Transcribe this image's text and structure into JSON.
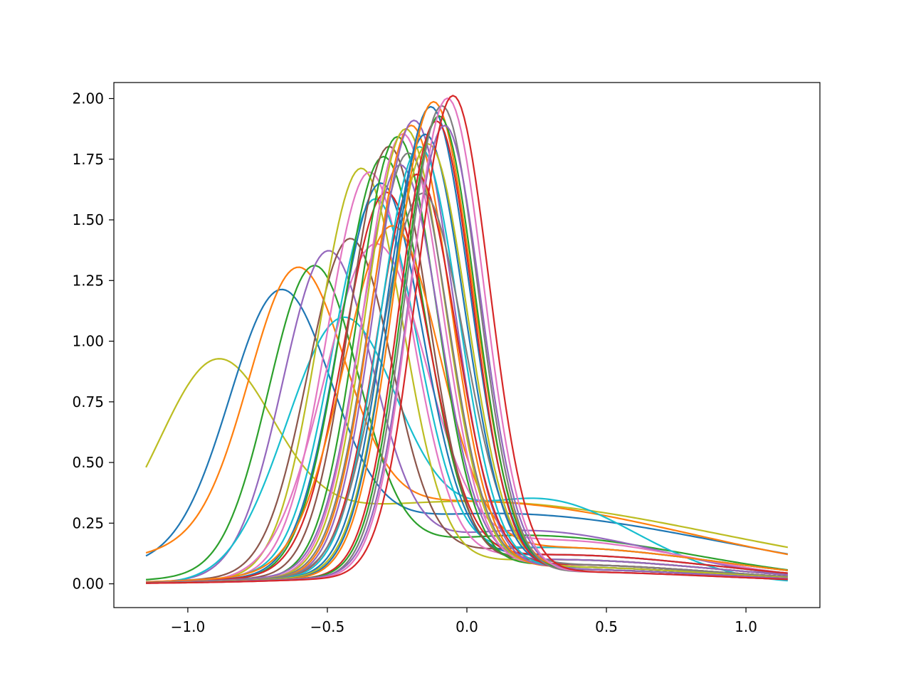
{
  "chart_data": {
    "type": "line",
    "title": "",
    "xlabel": "",
    "ylabel": "",
    "xlim": [
      -1.265,
      1.265
    ],
    "ylim": [
      -0.098,
      2.066
    ],
    "x_range": [
      -1.15,
      1.15
    ],
    "xticks": [
      -1.0,
      -0.5,
      0.0,
      0.5,
      1.0
    ],
    "xtick_labels": [
      "−1.0",
      "−0.5",
      "0.0",
      "0.5",
      "1.0"
    ],
    "yticks": [
      0.0,
      0.25,
      0.5,
      0.75,
      1.0,
      1.25,
      1.5,
      1.75,
      2.0
    ],
    "ytick_labels": [
      "0.00",
      "0.25",
      "0.50",
      "0.75",
      "1.00",
      "1.25",
      "1.50",
      "1.75",
      "2.00"
    ],
    "grid": false,
    "legend": "none",
    "palette": [
      "#1f77b4",
      "#ff7f0e",
      "#2ca02c",
      "#d62728",
      "#9467bd",
      "#8c564b",
      "#e377c2",
      "#7f7f7f",
      "#bcbd22",
      "#17becf"
    ],
    "series_model": "peak + shoulder bumps per curve: [peak_x, peak_height, peak_width, shoulder_x, shoulder_height, shoulder_width]",
    "series": [
      {
        "color": "#bcbd22",
        "params": [
          -0.9,
          0.72,
          0.2,
          0.0,
          0.34,
          0.9
        ]
      },
      {
        "color": "#1f77b4",
        "params": [
          -0.67,
          1.03,
          0.18,
          0.1,
          0.29,
          0.8
        ]
      },
      {
        "color": "#ff7f0e",
        "params": [
          -0.61,
          1.05,
          0.17,
          0.0,
          0.34,
          0.8
        ]
      },
      {
        "color": "#2ca02c",
        "params": [
          -0.55,
          1.22,
          0.16,
          0.2,
          0.2,
          0.6
        ]
      },
      {
        "color": "#9467bd",
        "params": [
          -0.5,
          1.29,
          0.16,
          0.2,
          0.22,
          0.5
        ]
      },
      {
        "color": "#17becf",
        "params": [
          -0.45,
          1.05,
          0.2,
          0.25,
          0.35,
          0.35
        ]
      },
      {
        "color": "#8c564b",
        "params": [
          -0.42,
          1.35,
          0.15,
          0.3,
          0.15,
          0.6
        ]
      },
      {
        "color": "#bcbd22",
        "params": [
          -0.38,
          1.66,
          0.15,
          0.3,
          0.1,
          0.6
        ]
      },
      {
        "color": "#e377c2",
        "params": [
          -0.35,
          1.63,
          0.15,
          0.3,
          0.12,
          0.6
        ]
      },
      {
        "color": "#17becf",
        "params": [
          -0.33,
          1.5,
          0.15,
          0.3,
          0.15,
          0.6
        ]
      },
      {
        "color": "#e377c2",
        "params": [
          -0.33,
          1.32,
          0.18,
          0.3,
          0.18,
          0.5
        ]
      },
      {
        "color": "#1f77b4",
        "params": [
          -0.31,
          1.58,
          0.15,
          0.3,
          0.12,
          0.6
        ]
      },
      {
        "color": "#2ca02c",
        "params": [
          -0.3,
          1.7,
          0.15,
          0.3,
          0.1,
          0.6
        ]
      },
      {
        "color": "#d62728",
        "params": [
          -0.29,
          1.54,
          0.15,
          0.3,
          0.12,
          0.6
        ]
      },
      {
        "color": "#8c564b",
        "params": [
          -0.28,
          1.74,
          0.14,
          0.3,
          0.1,
          0.6
        ]
      },
      {
        "color": "#ff7f0e",
        "params": [
          -0.27,
          1.38,
          0.17,
          0.3,
          0.15,
          0.6
        ]
      },
      {
        "color": "#2ca02c",
        "params": [
          -0.25,
          1.79,
          0.14,
          0.3,
          0.08,
          0.6
        ]
      },
      {
        "color": "#9467bd",
        "params": [
          -0.24,
          1.66,
          0.14,
          0.3,
          0.1,
          0.6
        ]
      },
      {
        "color": "#e377c2",
        "params": [
          -0.23,
          1.8,
          0.14,
          0.3,
          0.08,
          0.6
        ]
      },
      {
        "color": "#bcbd22",
        "params": [
          -0.22,
          1.82,
          0.14,
          0.3,
          0.08,
          0.6
        ]
      },
      {
        "color": "#7f7f7f",
        "params": [
          -0.21,
          1.72,
          0.14,
          0.3,
          0.08,
          0.6
        ]
      },
      {
        "color": "#ff7f0e",
        "params": [
          -0.2,
          1.84,
          0.14,
          0.3,
          0.07,
          0.6
        ]
      },
      {
        "color": "#9467bd",
        "params": [
          -0.19,
          1.86,
          0.14,
          0.3,
          0.07,
          0.6
        ]
      },
      {
        "color": "#d62728",
        "params": [
          -0.18,
          1.63,
          0.14,
          0.3,
          0.08,
          0.6
        ]
      },
      {
        "color": "#17becf",
        "params": [
          -0.17,
          1.75,
          0.14,
          0.3,
          0.07,
          0.6
        ]
      },
      {
        "color": "#7f7f7f",
        "params": [
          -0.16,
          1.55,
          0.15,
          0.3,
          0.08,
          0.6
        ]
      },
      {
        "color": "#1f77b4",
        "params": [
          -0.15,
          1.8,
          0.14,
          0.3,
          0.07,
          0.6
        ]
      },
      {
        "color": "#bcbd22",
        "params": [
          -0.14,
          1.76,
          0.14,
          0.3,
          0.07,
          0.6
        ]
      },
      {
        "color": "#1f77b4",
        "params": [
          -0.13,
          1.92,
          0.14,
          0.3,
          0.06,
          0.6
        ]
      },
      {
        "color": "#ff7f0e",
        "params": [
          -0.12,
          1.94,
          0.14,
          0.3,
          0.06,
          0.6
        ]
      },
      {
        "color": "#d62728",
        "params": [
          -0.11,
          1.86,
          0.13,
          0.3,
          0.06,
          0.6
        ]
      },
      {
        "color": "#2ca02c",
        "params": [
          -0.1,
          1.88,
          0.13,
          0.3,
          0.06,
          0.6
        ]
      },
      {
        "color": "#7f7f7f",
        "params": [
          -0.09,
          1.93,
          0.13,
          0.3,
          0.05,
          0.6
        ]
      },
      {
        "color": "#9467bd",
        "params": [
          -0.08,
          1.84,
          0.13,
          0.3,
          0.06,
          0.6
        ]
      },
      {
        "color": "#e377c2",
        "params": [
          -0.07,
          1.96,
          0.13,
          0.3,
          0.05,
          0.6
        ]
      },
      {
        "color": "#d62728",
        "params": [
          -0.05,
          1.97,
          0.13,
          0.3,
          0.05,
          0.6
        ]
      }
    ]
  }
}
